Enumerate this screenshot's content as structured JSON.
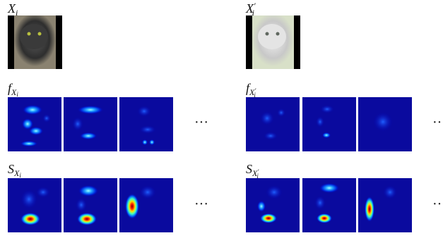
{
  "left": {
    "image_label": {
      "symbol": "X",
      "sub": "i"
    },
    "feature_label": {
      "symbol": "f",
      "sub": "X",
      "subsub": "i"
    },
    "saliency_label": {
      "symbol": "S",
      "sub": "X",
      "subsub": "i"
    },
    "feature_ellipsis": "···",
    "saliency_ellipsis": "···"
  },
  "right": {
    "image_label": {
      "symbol": "X",
      "prime": "′",
      "sub": "i"
    },
    "feature_label": {
      "symbol": "f",
      "sub": "X",
      "subprime": "′",
      "subsub": "i"
    },
    "saliency_label": {
      "symbol": "S",
      "sub": "X",
      "subprime": "′",
      "subsub": "i"
    },
    "feature_ellipsis": "··",
    "saliency_ellipsis": "··"
  }
}
